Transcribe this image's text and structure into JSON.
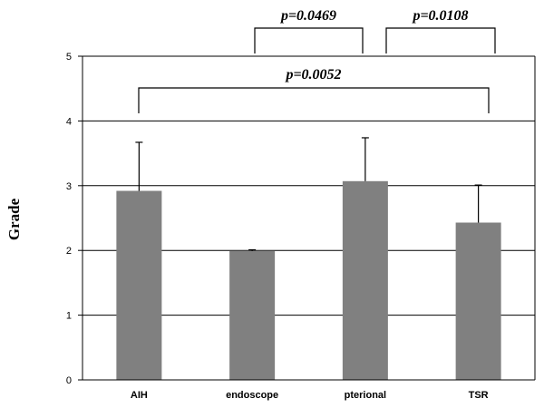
{
  "chart_data": {
    "type": "bar",
    "title": "",
    "xlabel": "",
    "ylabel": "Grade",
    "ylim": [
      0,
      5
    ],
    "yticks": [
      0,
      1,
      2,
      3,
      4,
      5
    ],
    "grid": true,
    "categories": [
      "AIH",
      "endoscope",
      "pterional",
      "TSR"
    ],
    "values": [
      2.92,
      1.99,
      3.07,
      2.43
    ],
    "error_upper": [
      0.75,
      0.02,
      0.67,
      0.58
    ],
    "bar_color": "#808080",
    "annotations": [
      {
        "label": "p=0.0469",
        "from": "endoscope",
        "to": "pterional"
      },
      {
        "label": "p=0.0108",
        "from": "pterional",
        "to": "TSR"
      },
      {
        "label": "p=0.0052",
        "from": "AIH",
        "to": "TSR"
      }
    ]
  }
}
